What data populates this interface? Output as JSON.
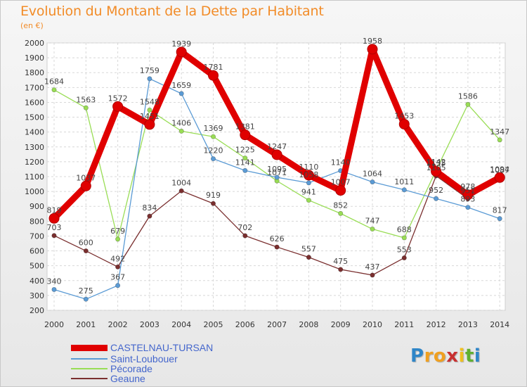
{
  "chart_data": {
    "type": "line",
    "title": "Evolution du Montant de la Dette par Habitant",
    "subtitle": "(en €)",
    "x": [
      "2000",
      "2001",
      "2002",
      "2003",
      "2004",
      "2005",
      "2006",
      "2007",
      "2008",
      "2009",
      "2010",
      "2011",
      "2012",
      "2013",
      "2014"
    ],
    "yticks": [
      200,
      300,
      400,
      500,
      600,
      700,
      800,
      900,
      1000,
      1100,
      1200,
      1300,
      1400,
      1500,
      1600,
      1700,
      1800,
      1900,
      2000
    ],
    "ylim": [
      200,
      2000
    ],
    "grid": true,
    "legend_position": "bottom-left",
    "series": [
      {
        "name": "CASTELNAU-TURSAN",
        "color": "#e00000",
        "values": [
          819,
          1037,
          1572,
          1451,
          1939,
          1781,
          1381,
          1247,
          1110,
          1007,
          1958,
          1453,
          1135,
          978,
          1094
        ]
      },
      {
        "name": "Saint-Loubouer",
        "color": "#5b9bd5",
        "values": [
          340,
          275,
          367,
          1759,
          1659,
          1220,
          1141,
          1095,
          1058,
          1140,
          1064,
          1011,
          952,
          893,
          817
        ]
      },
      {
        "name": "Pécorade",
        "color": "#99dd55",
        "values": [
          1684,
          1563,
          679,
          1548,
          1406,
          1369,
          1225,
          1071,
          941,
          852,
          747,
          688,
          1142,
          1586,
          1347
        ]
      },
      {
        "name": "Geaune",
        "color": "#7a2f2f",
        "values": [
          703,
          600,
          492,
          834,
          1004,
          919,
          702,
          626,
          557,
          475,
          437,
          553,
          1105,
          951,
          1087
        ]
      }
    ]
  },
  "brand": {
    "letters": [
      "P",
      "r",
      "o",
      "x",
      "i",
      "t",
      "i"
    ],
    "colors": [
      "#2f86c8",
      "#f0a020",
      "#f0a020",
      "#c83030",
      "#f0c020",
      "#60b030",
      "#2f86c8"
    ]
  }
}
